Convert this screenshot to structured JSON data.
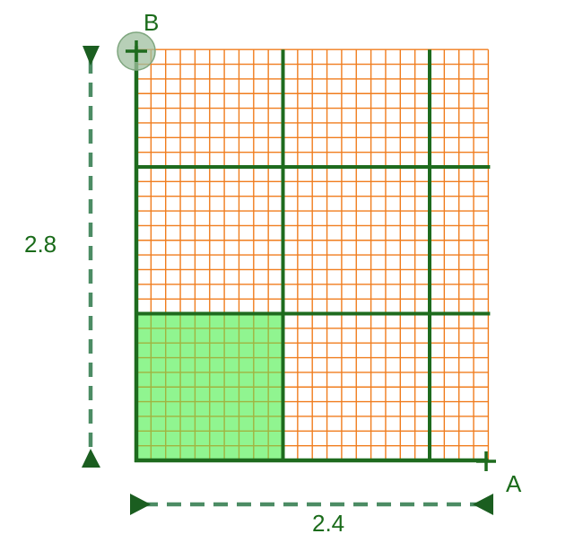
{
  "labels": {
    "point_a": "A",
    "point_b": "B",
    "height_value": "2.8",
    "width_value": "2.4"
  },
  "colors": {
    "label": "#1a6b1a",
    "main_grid": "#1e6b1e",
    "fine_grid": "#f07d1e",
    "highlight_fill": "#90f590",
    "highlight_grid": "#a0b440",
    "dimension_line": "#4c8c64",
    "arrow_head": "#1b5e20",
    "handle": "#9fbf9f",
    "background": "#ffffff"
  },
  "diagram": {
    "width_units": 2.4,
    "height_units": 2.8,
    "unit_cells_x": 24,
    "unit_cells_y": 28,
    "major_every_cells": 10,
    "highlight_cells_x": 10,
    "highlight_cells_y": 10
  }
}
